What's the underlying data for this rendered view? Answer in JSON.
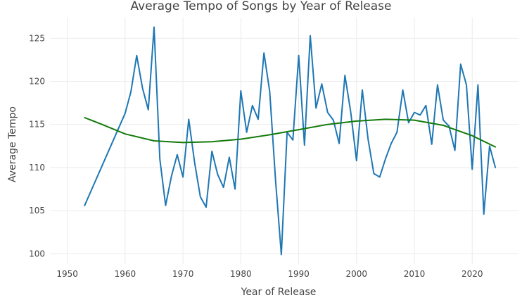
{
  "chart_data": {
    "type": "line",
    "title": "Average Tempo of Songs by Year of Release",
    "xlabel": "Year of Release",
    "ylabel": "Average Tempo",
    "xlim": [
      1947,
      2028
    ],
    "ylim": [
      98.8,
      127.4
    ],
    "grid": true,
    "legend": "none",
    "x_ticks": [
      1950,
      1960,
      1970,
      1980,
      1990,
      2000,
      2010,
      2020
    ],
    "y_ticks": [
      100,
      105,
      110,
      115,
      120,
      125
    ],
    "series": [
      {
        "color": "#1f77b4",
        "x": [
          1953,
          1960,
          1961,
          1962,
          1963,
          1964,
          1965,
          1966,
          1967,
          1968,
          1969,
          1970,
          1971,
          1972,
          1973,
          1974,
          1975,
          1976,
          1977,
          1978,
          1979,
          1980,
          1981,
          1982,
          1983,
          1984,
          1985,
          1986,
          1987,
          1988,
          1989,
          1990,
          1991,
          1992,
          1993,
          1994,
          1995,
          1996,
          1997,
          1998,
          1999,
          2000,
          2001,
          2002,
          2003,
          2004,
          2005,
          2006,
          2007,
          2008,
          2009,
          2010,
          2011,
          2012,
          2013,
          2014,
          2015,
          2016,
          2017,
          2018,
          2019,
          2020,
          2021,
          2022,
          2023,
          2024
        ],
        "y": [
          105.6,
          116.3,
          118.8,
          123.0,
          119.2,
          116.7,
          126.3,
          111.0,
          105.6,
          109.0,
          111.5,
          108.9,
          115.6,
          110.6,
          106.6,
          105.4,
          111.9,
          109.2,
          107.7,
          111.2,
          107.5,
          118.9,
          114.1,
          117.2,
          115.6,
          123.3,
          118.8,
          108.5,
          99.9,
          114.1,
          113.2,
          123.0,
          112.6,
          125.3,
          116.9,
          119.7,
          116.4,
          115.5,
          112.8,
          120.7,
          116.4,
          110.8,
          119.0,
          113.3,
          109.3,
          108.9,
          111.0,
          112.8,
          114.1,
          119.0,
          115.2,
          116.4,
          116.1,
          117.2,
          112.7,
          119.6,
          115.5,
          114.8,
          112.0,
          122.0,
          119.6,
          109.8,
          119.6,
          104.6,
          112.5,
          110.0
        ]
      },
      {
        "color": "#137a0c",
        "x": [
          1953,
          1956,
          1960,
          1965,
          1970,
          1975,
          1980,
          1985,
          1990,
          1995,
          2000,
          2005,
          2010,
          2015,
          2020,
          2024
        ],
        "y": [
          115.8,
          115.0,
          113.9,
          113.1,
          112.9,
          113.0,
          113.3,
          113.8,
          114.4,
          115.0,
          115.4,
          115.6,
          115.5,
          114.9,
          113.7,
          112.4
        ]
      }
    ]
  }
}
